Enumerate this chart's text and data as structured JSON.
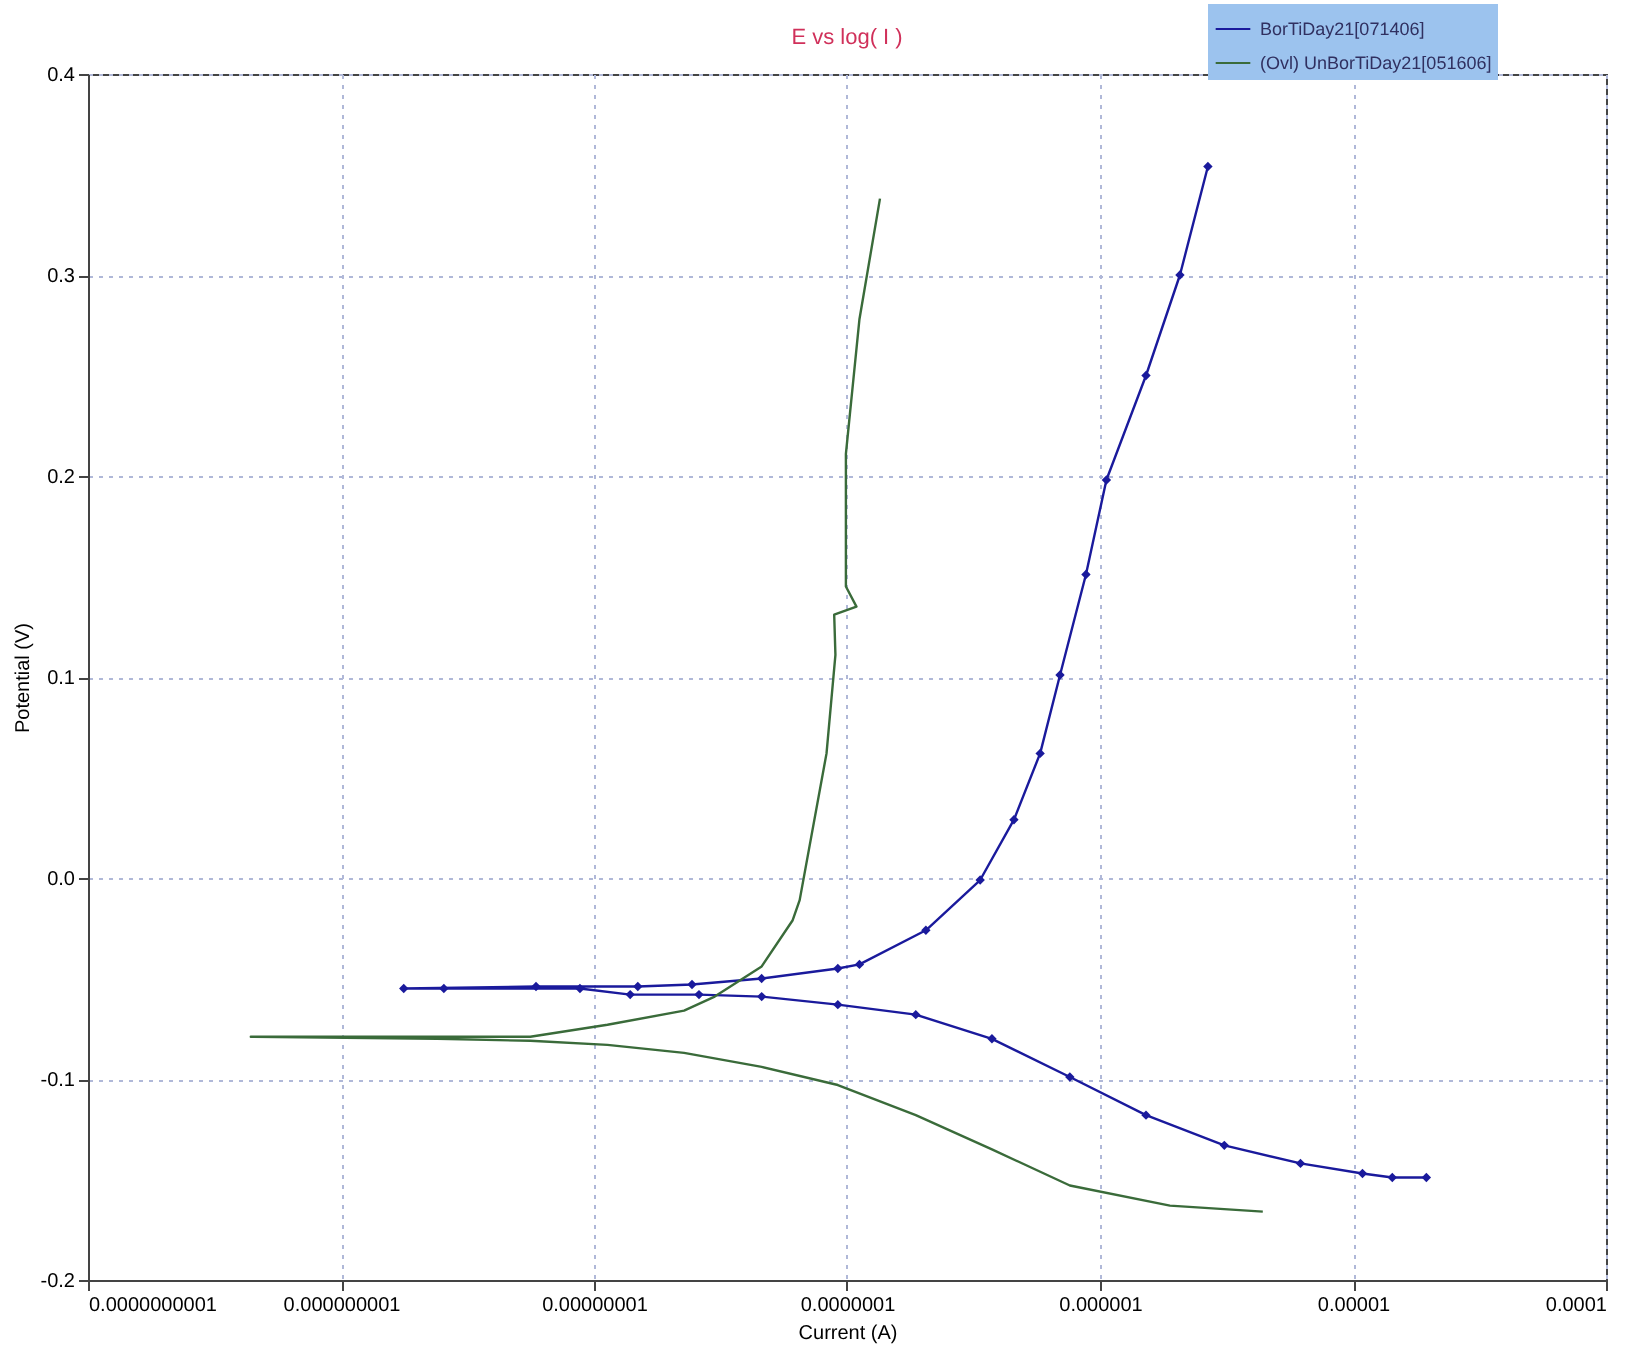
{
  "chart_data": {
    "type": "line",
    "title": "E vs log( I )",
    "xlabel": "Current (A)",
    "ylabel": "Potential (V)",
    "log": "x",
    "grid": true,
    "legend": "top right",
    "xlim": [
      1e-10,
      0.0001
    ],
    "xticks": [
      {
        "value": 1e-10,
        "label": "0.0000000001"
      },
      {
        "value": 1e-09,
        "label": "0.000000001"
      },
      {
        "value": 1e-08,
        "label": "0.00000001"
      },
      {
        "value": 1e-07,
        "label": "0.0000001"
      },
      {
        "value": 1e-06,
        "label": "0.000001"
      },
      {
        "value": 1e-05,
        "label": "0.00001"
      },
      {
        "value": 0.0001,
        "label": "0.0001"
      }
    ],
    "ylim": [
      -0.2,
      0.4
    ],
    "yticks": [
      -0.2,
      -0.1,
      {
        "value": 0,
        "label": "0.0"
      },
      0.1,
      0.2,
      0.3,
      0.4
    ],
    "series": [
      {
        "name": "BorTiDay21[071406]",
        "color": "#1a1a9c",
        "marker": "diamond",
        "x": [
          1.95e-05,
          1.43e-05,
          1.09e-05,
          6.2e-06,
          3.1e-06,
          1.52e-06,
          7.6e-07,
          3.74e-07,
          1.87e-07,
          9.2e-08,
          4.6e-08,
          2.6e-08,
          1.39e-08,
          8.8e-09,
          2.55e-09,
          1.77e-09,
          5.9e-09,
          1.49e-08,
          2.44e-08,
          4.6e-08,
          9.2e-08,
          1.12e-07,
          2.05e-07,
          3.36e-07,
          4.57e-07,
          5.8e-07,
          6.95e-07,
          8.8e-07,
          1.06e-06,
          1.52e-06,
          2.07e-06,
          2.67e-06
        ],
        "values": [
          -0.149,
          -0.149,
          -0.147,
          -0.142,
          -0.133,
          -0.118,
          -0.099,
          -0.08,
          -0.068,
          -0.063,
          -0.059,
          -0.058,
          -0.058,
          -0.055,
          -0.055,
          -0.055,
          -0.054,
          -0.054,
          -0.053,
          -0.05,
          -0.045,
          -0.043,
          -0.026,
          -0.001,
          0.029,
          0.062,
          0.101,
          0.151,
          0.198,
          0.25,
          0.3,
          0.354
        ]
      },
      {
        "name": "(Ovl) UnBorTiDay21[051606]",
        "color": "#3a6b3a",
        "marker": "none",
        "x": [
          4.4e-06,
          1.89e-06,
          7.6e-07,
          3.74e-07,
          1.87e-07,
          9.2e-08,
          4.6e-08,
          2.27e-08,
          1.13e-08,
          5.6e-09,
          2.4e-09,
          4.4e-10,
          2.4e-09,
          5.6e-09,
          1.13e-08,
          2.27e-08,
          3e-08,
          4.6e-08,
          6.1e-08,
          6.5e-08,
          8.3e-08,
          9e-08,
          8.9e-08,
          1.09e-07,
          9.9e-08,
          9.9e-08,
          1.12e-07,
          1.35e-07
        ],
        "values": [
          -0.166,
          -0.163,
          -0.153,
          -0.135,
          -0.118,
          -0.103,
          -0.094,
          -0.087,
          -0.083,
          -0.081,
          -0.08,
          -0.079,
          -0.079,
          -0.079,
          -0.073,
          -0.066,
          -0.059,
          -0.044,
          -0.021,
          -0.011,
          0.062,
          0.111,
          0.131,
          0.135,
          0.145,
          0.211,
          0.278,
          0.338
        ]
      }
    ]
  }
}
